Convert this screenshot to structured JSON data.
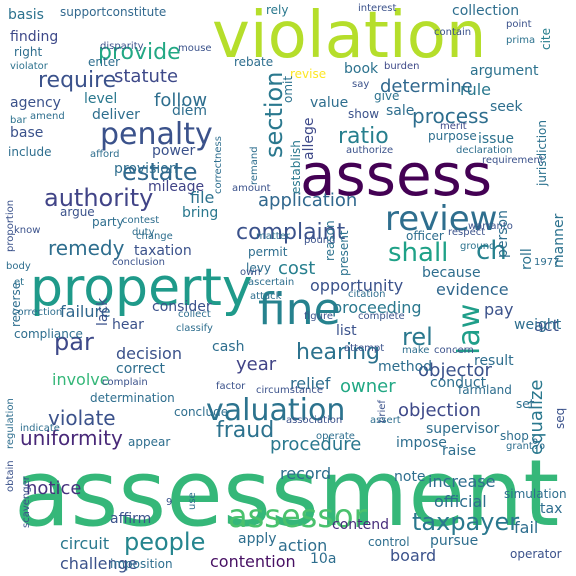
{
  "words": [
    {
      "text": "assessment",
      "color": "#35b779"
    },
    {
      "text": "violation",
      "color": "#b5de2b"
    },
    {
      "text": "assess",
      "color": "#440154"
    },
    {
      "text": "property",
      "color": "#1f9a8a"
    },
    {
      "text": "fine",
      "color": "#26828e"
    },
    {
      "text": "review",
      "color": "#2e6e8e"
    },
    {
      "text": "penalty",
      "color": "#3b528b"
    },
    {
      "text": "assessor",
      "color": "#4ac16d"
    },
    {
      "text": "valuation",
      "color": "#2c738e"
    },
    {
      "text": "authority",
      "color": "#414487"
    },
    {
      "text": "people",
      "color": "#25858e"
    },
    {
      "text": "estate",
      "color": "#31688e"
    },
    {
      "text": "par",
      "color": "#3e4989"
    },
    {
      "text": "law",
      "color": "#1f9e89"
    },
    {
      "text": "section",
      "color": "#2a788e"
    },
    {
      "text": "ch",
      "color": "#26828e"
    },
    {
      "text": "shall",
      "color": "#1fa187"
    },
    {
      "text": "taxpayer",
      "color": "#2a788e"
    },
    {
      "text": "complaint",
      "color": "#3b528b"
    },
    {
      "text": "hearing",
      "color": "#2c728e"
    },
    {
      "text": "require",
      "color": "#3b528b"
    },
    {
      "text": "remedy",
      "color": "#2e6e8e"
    },
    {
      "text": "rel",
      "color": "#2a788e"
    },
    {
      "text": "provide",
      "color": "#22a884"
    },
    {
      "text": "ratio",
      "color": "#277f8e"
    },
    {
      "text": "violate",
      "color": "#3b528b"
    },
    {
      "text": "fraud",
      "color": "#2c728e"
    },
    {
      "text": "uniformity",
      "color": "#482878"
    },
    {
      "text": "notice",
      "color": "#46327e"
    },
    {
      "text": "determine",
      "color": "#31688e"
    },
    {
      "text": "process",
      "color": "#2e6e8e"
    },
    {
      "text": "application",
      "color": "#31688e"
    },
    {
      "text": "objection",
      "color": "#3e4989"
    },
    {
      "text": "objector",
      "color": "#3b528b"
    },
    {
      "text": "procedure",
      "color": "#2a788e"
    },
    {
      "text": "opportunity",
      "color": "#3b528b"
    },
    {
      "text": "owner",
      "color": "#22a884"
    },
    {
      "text": "statute",
      "color": "#3e4989"
    },
    {
      "text": "follow",
      "color": "#2e6e8e"
    },
    {
      "text": "cost",
      "color": "#277f8e"
    },
    {
      "text": "year",
      "color": "#414487"
    },
    {
      "text": "relief",
      "color": "#2e6e8e"
    },
    {
      "text": "decision",
      "color": "#3b528b"
    },
    {
      "text": "failure",
      "color": "#31688e"
    },
    {
      "text": "proceeding",
      "color": "#2a788e"
    },
    {
      "text": "involve",
      "color": "#35b779"
    },
    {
      "text": "equalize",
      "color": "#2a788e"
    },
    {
      "text": "evidence",
      "color": "#31688e"
    },
    {
      "text": "action",
      "color": "#2e6e8e"
    },
    {
      "text": "contention",
      "color": "#471063"
    },
    {
      "text": "contend",
      "color": "#472d7b"
    },
    {
      "text": "board",
      "color": "#3b528b"
    },
    {
      "text": "circuit",
      "color": "#2a788e"
    },
    {
      "text": "affirm",
      "color": "#3b528b"
    },
    {
      "text": "apply",
      "color": "#2e6e8e"
    },
    {
      "text": "challenge",
      "color": "#3b528b"
    },
    {
      "text": "finding",
      "color": "#3e4989"
    },
    {
      "text": "basis",
      "color": "#2c728e"
    },
    {
      "text": "supportconstitute",
      "color": "#31688e"
    },
    {
      "text": "collection",
      "color": "#2e6e8e"
    },
    {
      "text": "rely",
      "color": "#2a788e"
    },
    {
      "text": "interest",
      "color": "#3b528b"
    },
    {
      "text": "point",
      "color": "#3b528b"
    },
    {
      "text": "cite",
      "color": "#277f8e"
    },
    {
      "text": "prima",
      "color": "#2c728e"
    },
    {
      "text": "contain",
      "color": "#3b528b"
    },
    {
      "text": "disparity",
      "color": "#3b528b"
    },
    {
      "text": "mouse",
      "color": "#3b528b"
    },
    {
      "text": "right",
      "color": "#2e6e8e"
    },
    {
      "text": "enter",
      "color": "#2e6e8e"
    },
    {
      "text": "violator",
      "color": "#2c728e"
    },
    {
      "text": "book",
      "color": "#2c728e"
    },
    {
      "text": "revise",
      "color": "#fde725"
    },
    {
      "text": "burden",
      "color": "#3e4989"
    },
    {
      "text": "argument",
      "color": "#2c728e"
    },
    {
      "text": "say",
      "color": "#3b528b"
    },
    {
      "text": "rule",
      "color": "#2a788e"
    },
    {
      "text": "seek",
      "color": "#2e6e8e"
    },
    {
      "text": "merit",
      "color": "#3e4989"
    },
    {
      "text": "agency",
      "color": "#3b528b"
    },
    {
      "text": "amend",
      "color": "#2e6e8e"
    },
    {
      "text": "bar",
      "color": "#2c728e"
    },
    {
      "text": "level",
      "color": "#2a788e"
    },
    {
      "text": "deliver",
      "color": "#2e6e8e"
    },
    {
      "text": "diem",
      "color": "#2e6e8e"
    },
    {
      "text": "rebate",
      "color": "#2e6e8e"
    },
    {
      "text": "omit",
      "color": "#2c728e"
    },
    {
      "text": "value",
      "color": "#2e6e8e"
    },
    {
      "text": "sale",
      "color": "#2e6e8e"
    },
    {
      "text": "give",
      "color": "#2c728e"
    },
    {
      "text": "show",
      "color": "#3b528b"
    },
    {
      "text": "purpose",
      "color": "#2e6e8e"
    },
    {
      "text": "issue",
      "color": "#2c728e"
    },
    {
      "text": "allege",
      "color": "#3e4989"
    },
    {
      "text": "establish",
      "color": "#2a788e"
    },
    {
      "text": "authorize",
      "color": "#3b528b"
    },
    {
      "text": "declaration",
      "color": "#2e6e8e"
    },
    {
      "text": "requirement",
      "color": "#3b528b"
    },
    {
      "text": "jurisdiction",
      "color": "#2c728e"
    },
    {
      "text": "base",
      "color": "#3b528b"
    },
    {
      "text": "include",
      "color": "#2e6e8e"
    },
    {
      "text": "afford",
      "color": "#2e6e8e"
    },
    {
      "text": "power",
      "color": "#3b528b"
    },
    {
      "text": "correctness",
      "color": "#2e6e8e"
    },
    {
      "text": "remand",
      "color": "#2e6e8e"
    },
    {
      "text": "provision",
      "color": "#2e6e8e"
    },
    {
      "text": "mileage",
      "color": "#414487"
    },
    {
      "text": "amount",
      "color": "#3b528b"
    },
    {
      "text": "file",
      "color": "#2c728e"
    },
    {
      "text": "argue",
      "color": "#3b528b"
    },
    {
      "text": "contest",
      "color": "#2e6e8e"
    },
    {
      "text": "change",
      "color": "#2e6e8e"
    },
    {
      "text": "bring",
      "color": "#2a788e"
    },
    {
      "text": "matter",
      "color": "#2e6e8e"
    },
    {
      "text": "pound",
      "color": "#3b528b"
    },
    {
      "text": "warranto",
      "color": "#3b528b"
    },
    {
      "text": "proportion",
      "color": "#3b528b"
    },
    {
      "text": "party",
      "color": "#2e6e8e"
    },
    {
      "text": "know",
      "color": "#3b528b"
    },
    {
      "text": "duty",
      "color": "#2e6e8e"
    },
    {
      "text": "taxation",
      "color": "#3b528b"
    },
    {
      "text": "permit",
      "color": "#2e6e8e"
    },
    {
      "text": "reason",
      "color": "#2c728e"
    },
    {
      "text": "present",
      "color": "#2c728e"
    },
    {
      "text": "officer",
      "color": "#2e6e8e"
    },
    {
      "text": "respect",
      "color": "#3b528b"
    },
    {
      "text": "ground",
      "color": "#2c728e"
    },
    {
      "text": "manner",
      "color": "#2c728e"
    },
    {
      "text": "person",
      "color": "#2e6e8e"
    },
    {
      "text": "roll",
      "color": "#2c728e"
    },
    {
      "text": "conclusion",
      "color": "#3b528b"
    },
    {
      "text": "levy",
      "color": "#2e6e8e"
    },
    {
      "text": "own",
      "color": "#3b528b"
    },
    {
      "text": "body",
      "color": "#2e6e8e"
    },
    {
      "text": "et",
      "color": "#2c728e"
    },
    {
      "text": "reverse",
      "color": "#2e6e8e"
    },
    {
      "text": "correction",
      "color": "#2e6e8e"
    },
    {
      "text": "compliance",
      "color": "#2e6e8e"
    },
    {
      "text": "because",
      "color": "#2e6e8e"
    },
    {
      "text": "1977",
      "color": "#2e6e8e"
    },
    {
      "text": "ascertain",
      "color": "#2e6e8e"
    },
    {
      "text": "attack",
      "color": "#2e6e8e"
    },
    {
      "text": "citation",
      "color": "#2e6e8e"
    },
    {
      "text": "collect",
      "color": "#2e6e8e"
    },
    {
      "text": "classify",
      "color": "#2e6e8e"
    },
    {
      "text": "lack",
      "color": "#3b528b"
    },
    {
      "text": "hear",
      "color": "#3b528b"
    },
    {
      "text": "consider",
      "color": "#3b528b"
    },
    {
      "text": "list",
      "color": "#3b528b"
    },
    {
      "text": "pay",
      "color": "#3b528b"
    },
    {
      "text": "act",
      "color": "#3b528b"
    },
    {
      "text": "weight",
      "color": "#2e6e8e"
    },
    {
      "text": "cash",
      "color": "#2e6e8e"
    },
    {
      "text": "figure",
      "color": "#3b528b"
    },
    {
      "text": "complete",
      "color": "#3b528b"
    },
    {
      "text": "attempt",
      "color": "#3b528b"
    },
    {
      "text": "concern",
      "color": "#3b528b"
    },
    {
      "text": "make",
      "color": "#2e6e8e"
    },
    {
      "text": "result",
      "color": "#2e6e8e"
    },
    {
      "text": "correct",
      "color": "#2e6e8e"
    },
    {
      "text": "method",
      "color": "#2e6e8e"
    },
    {
      "text": "complain",
      "color": "#3b528b"
    },
    {
      "text": "determination",
      "color": "#2e6e8e"
    },
    {
      "text": "factor",
      "color": "#3b528b"
    },
    {
      "text": "circumstance",
      "color": "#3b528b"
    },
    {
      "text": "farmland",
      "color": "#2e6e8e"
    },
    {
      "text": "conduct",
      "color": "#2e6e8e"
    },
    {
      "text": "conclude",
      "color": "#2e6e8e"
    },
    {
      "text": "regulation",
      "color": "#2e6e8e"
    },
    {
      "text": "indicate",
      "color": "#2e6e8e"
    },
    {
      "text": "appear",
      "color": "#2e6e8e"
    },
    {
      "text": "association",
      "color": "#3b528b"
    },
    {
      "text": "operate",
      "color": "#2e6e8e"
    },
    {
      "text": "brief",
      "color": "#3b528b"
    },
    {
      "text": "assert",
      "color": "#2e6e8e"
    },
    {
      "text": "set",
      "color": "#2e6e8e"
    },
    {
      "text": "supervisor",
      "color": "#2e6e8e"
    },
    {
      "text": "shop",
      "color": "#2e6e8e"
    },
    {
      "text": "grant",
      "color": "#2e6e8e"
    },
    {
      "text": "seq",
      "color": "#3b528b"
    },
    {
      "text": "raise",
      "color": "#2e6e8e"
    },
    {
      "text": "impose",
      "color": "#2e6e8e"
    },
    {
      "text": "%",
      "color": "#2e6e8e"
    },
    {
      "text": "record",
      "color": "#2e6e8e"
    },
    {
      "text": "note",
      "color": "#2e6e8e"
    },
    {
      "text": "obtain",
      "color": "#3b528b"
    },
    {
      "text": "scavenger",
      "color": "#3b528b"
    },
    {
      "text": "increase",
      "color": "#2e6e8e"
    },
    {
      "text": "simulation",
      "color": "#2e6e8e"
    },
    {
      "text": "official",
      "color": "#2e6e8e"
    },
    {
      "text": "tax",
      "color": "#2e6e8e"
    },
    {
      "text": "use",
      "color": "#2e6e8e"
    },
    {
      "text": "9",
      "color": "#3b528b"
    },
    {
      "text": "control",
      "color": "#2e6e8e"
    },
    {
      "text": "pursue",
      "color": "#2e6e8e"
    },
    {
      "text": "fail",
      "color": "#2e6e8e"
    },
    {
      "text": "operator",
      "color": "#3b528b"
    },
    {
      "text": "imposition",
      "color": "#2e6e8e"
    },
    {
      "text": "10a",
      "color": "#2e6e8e"
    }
  ]
}
